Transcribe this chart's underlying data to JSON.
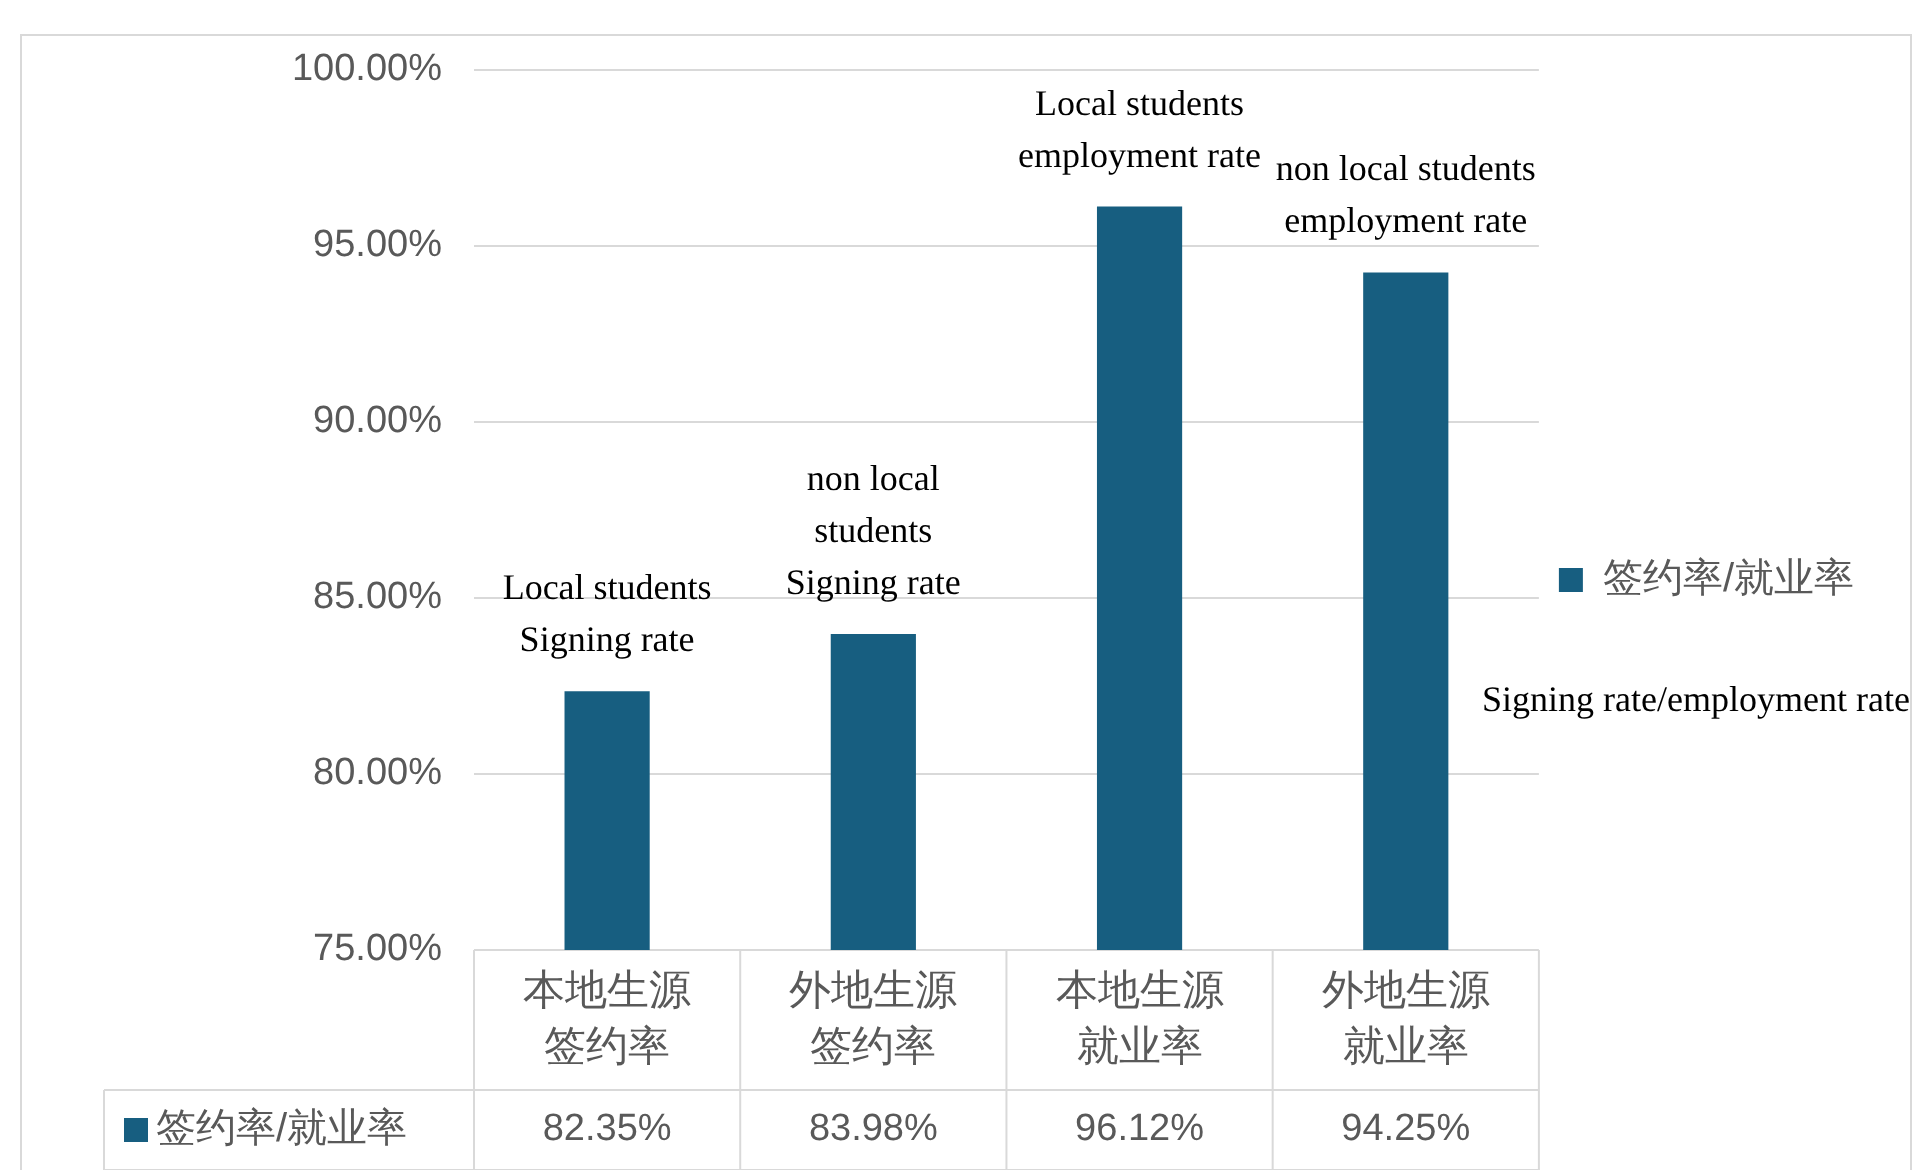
{
  "chart_data": {
    "type": "bar",
    "categories": [
      "本地生源签约率",
      "外地生源签约率",
      "本地生源就业率",
      "外地生源就业率"
    ],
    "series": [
      {
        "name": "签约率/就业率",
        "color": "#175e80",
        "values": [
          82.35,
          83.98,
          96.12,
          94.25
        ],
        "value_labels": [
          "82.35%",
          "83.98%",
          "96.12%",
          "94.25%"
        ]
      }
    ],
    "ylim": [
      75,
      100
    ],
    "yticks": [
      {
        "value": 75,
        "label": "75.00%"
      },
      {
        "value": 80,
        "label": "80.00%"
      },
      {
        "value": 85,
        "label": "85.00%"
      },
      {
        "value": 90,
        "label": "90.00%"
      },
      {
        "value": 95,
        "label": "95.00%"
      },
      {
        "value": 100,
        "label": "100.00%"
      }
    ],
    "grid": "y",
    "legend": "right",
    "annotations": [
      {
        "text": "Local students\nSigning rate",
        "x": "本地生源签约率",
        "y": 82.35
      },
      {
        "text": "non local\nstudents\nSigning rate",
        "x": "外地生源签约率",
        "y": 83.98
      },
      {
        "text": "Local students\nemployment rate",
        "x": "本地生源就业率",
        "y": 96.12
      },
      {
        "text": "non local students\nemployment rate",
        "x": "外地生源就业率",
        "y": 94.25
      },
      "Signing rate/employment rate"
    ]
  }
}
